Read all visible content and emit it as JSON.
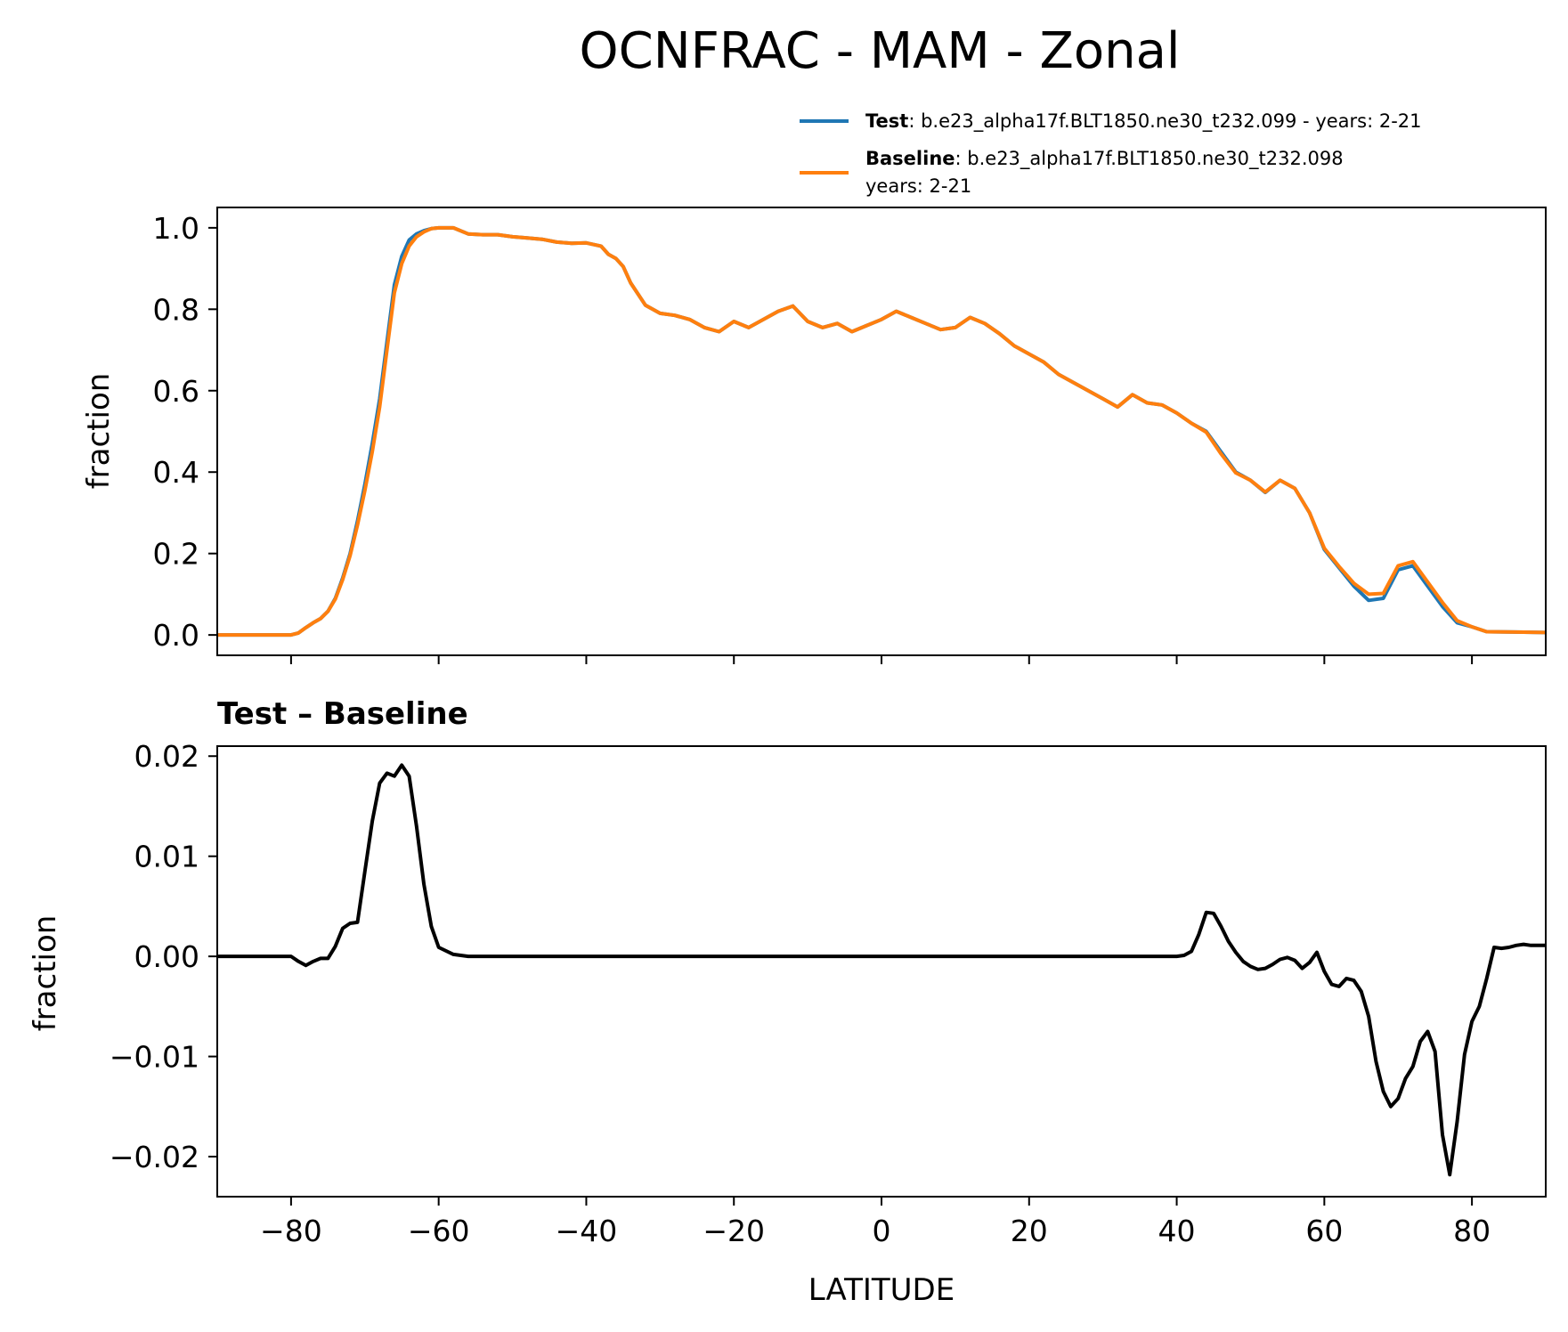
{
  "chart_data": [
    {
      "type": "line",
      "title": "OCNFRAC - MAM - Zonal",
      "xlabel": "",
      "ylabel": "fraction",
      "xlim": [
        -90,
        90
      ],
      "ylim": [
        -0.05,
        1.05
      ],
      "yticks": [
        0.0,
        0.2,
        0.4,
        0.6,
        0.8,
        1.0
      ],
      "ytick_labels": [
        "0.0",
        "0.2",
        "0.4",
        "0.6",
        "0.8",
        "1.0"
      ],
      "xticks": [
        -80,
        -60,
        -40,
        -20,
        0,
        20,
        40,
        60,
        80
      ],
      "grid": false,
      "legend_placement": "above-top-right",
      "legend": [
        {
          "name": "Test",
          "desc": ": b.e23_alpha17f.BLT1850.ne30_t232.099 - years: 2-21",
          "desc2": "",
          "color": "#1f77b4"
        },
        {
          "name": "Baseline",
          "desc": ": b.e23_alpha17f.BLT1850.ne30_t232.098",
          "desc2": "years: 2-21",
          "color": "#ff7f0e"
        }
      ],
      "series": [
        {
          "name": "Test",
          "color": "#1f77b4",
          "x": [
            -90,
            -85,
            -80,
            -79,
            -78,
            -77,
            -76,
            -75,
            -74,
            -73,
            -72,
            -71,
            -70,
            -69,
            -68,
            -67,
            -66,
            -65,
            -64,
            -63,
            -62,
            -61,
            -60,
            -59,
            -58,
            -56,
            -54,
            -52,
            -50,
            -48,
            -46,
            -44,
            -42,
            -40,
            -38,
            -37,
            -36,
            -35,
            -34,
            -32,
            -30,
            -28,
            -26,
            -24,
            -22,
            -20,
            -18,
            -16,
            -14,
            -12,
            -10,
            -8,
            -6,
            -4,
            -2,
            0,
            2,
            4,
            6,
            8,
            10,
            12,
            14,
            16,
            18,
            20,
            22,
            24,
            26,
            28,
            30,
            32,
            34,
            36,
            38,
            40,
            42,
            44,
            46,
            48,
            50,
            52,
            54,
            56,
            58,
            60,
            62,
            64,
            66,
            68,
            70,
            72,
            74,
            76,
            78,
            80,
            82,
            86,
            90
          ],
          "y": [
            0.0,
            0.0,
            0.0,
            0.005,
            0.018,
            0.03,
            0.04,
            0.058,
            0.09,
            0.14,
            0.2,
            0.28,
            0.37,
            0.47,
            0.58,
            0.72,
            0.86,
            0.93,
            0.97,
            0.985,
            0.993,
            0.998,
            1.0,
            1.0,
            1.0,
            0.985,
            0.983,
            0.983,
            0.978,
            0.975,
            0.972,
            0.965,
            0.962,
            0.963,
            0.955,
            0.935,
            0.925,
            0.905,
            0.865,
            0.81,
            0.79,
            0.785,
            0.775,
            0.755,
            0.745,
            0.77,
            0.755,
            0.775,
            0.795,
            0.808,
            0.77,
            0.755,
            0.765,
            0.745,
            0.76,
            0.775,
            0.795,
            0.78,
            0.765,
            0.75,
            0.755,
            0.78,
            0.765,
            0.74,
            0.71,
            0.69,
            0.67,
            0.64,
            0.62,
            0.6,
            0.58,
            0.56,
            0.59,
            0.57,
            0.565,
            0.545,
            0.52,
            0.5,
            0.45,
            0.4,
            0.38,
            0.35,
            0.38,
            0.36,
            0.3,
            0.21,
            0.165,
            0.12,
            0.085,
            0.09,
            0.16,
            0.17,
            0.12,
            0.07,
            0.03,
            0.02,
            0.008,
            0.007,
            0.006
          ]
        },
        {
          "name": "Baseline",
          "color": "#ff7f0e",
          "x": [
            -90,
            -85,
            -80,
            -79,
            -78,
            -77,
            -76,
            -75,
            -74,
            -73,
            -72,
            -71,
            -70,
            -69,
            -68,
            -67,
            -66,
            -65,
            -64,
            -63,
            -62,
            -61,
            -60,
            -59,
            -58,
            -56,
            -54,
            -52,
            -50,
            -48,
            -46,
            -44,
            -42,
            -40,
            -38,
            -37,
            -36,
            -35,
            -34,
            -32,
            -30,
            -28,
            -26,
            -24,
            -22,
            -20,
            -18,
            -16,
            -14,
            -12,
            -10,
            -8,
            -6,
            -4,
            -2,
            0,
            2,
            4,
            6,
            8,
            10,
            12,
            14,
            16,
            18,
            20,
            22,
            24,
            26,
            28,
            30,
            32,
            34,
            36,
            38,
            40,
            42,
            44,
            46,
            48,
            50,
            52,
            54,
            56,
            58,
            60,
            62,
            64,
            66,
            68,
            70,
            72,
            74,
            76,
            78,
            80,
            82,
            86,
            90
          ],
          "y": [
            0.0,
            0.0,
            0.0,
            0.005,
            0.018,
            0.03,
            0.04,
            0.058,
            0.088,
            0.136,
            0.195,
            0.27,
            0.355,
            0.45,
            0.56,
            0.7,
            0.84,
            0.912,
            0.955,
            0.978,
            0.99,
            0.998,
            1.0,
            1.0,
            1.0,
            0.985,
            0.983,
            0.983,
            0.978,
            0.975,
            0.972,
            0.965,
            0.962,
            0.963,
            0.955,
            0.935,
            0.925,
            0.905,
            0.865,
            0.81,
            0.79,
            0.785,
            0.775,
            0.755,
            0.745,
            0.77,
            0.755,
            0.775,
            0.795,
            0.808,
            0.77,
            0.755,
            0.765,
            0.745,
            0.76,
            0.775,
            0.795,
            0.78,
            0.765,
            0.75,
            0.755,
            0.78,
            0.765,
            0.74,
            0.71,
            0.69,
            0.67,
            0.64,
            0.62,
            0.6,
            0.58,
            0.56,
            0.59,
            0.57,
            0.565,
            0.545,
            0.52,
            0.498,
            0.445,
            0.398,
            0.38,
            0.351,
            0.38,
            0.36,
            0.3,
            0.213,
            0.168,
            0.127,
            0.1,
            0.102,
            0.17,
            0.18,
            0.13,
            0.08,
            0.035,
            0.02,
            0.008,
            0.007,
            0.006
          ]
        }
      ]
    },
    {
      "type": "line",
      "title": "Test – Baseline",
      "xlabel": "LATITUDE",
      "ylabel": "fraction",
      "xlim": [
        -90,
        90
      ],
      "ylim": [
        -0.024,
        0.021
      ],
      "yticks": [
        -0.02,
        -0.01,
        0.0,
        0.01,
        0.02
      ],
      "ytick_labels": [
        "−0.02",
        "−0.01",
        "0.00",
        "0.01",
        "0.02"
      ],
      "xticks": [
        -80,
        -60,
        -40,
        -20,
        0,
        20,
        40,
        60,
        80
      ],
      "xtick_labels": [
        "−80",
        "−60",
        "−40",
        "−20",
        "0",
        "20",
        "40",
        "60",
        "80"
      ],
      "grid": false,
      "series": [
        {
          "name": "",
          "color": "#000000",
          "x": [
            -90,
            -85,
            -80,
            -79,
            -78,
            -77,
            -76,
            -75,
            -74,
            -73,
            -72,
            -71,
            -70,
            -69,
            -68,
            -67,
            -66,
            -65,
            -64,
            -63,
            -62,
            -61,
            -60,
            -58,
            -56,
            -50,
            -40,
            -20,
            0,
            20,
            40,
            41,
            42,
            43,
            44,
            45,
            46,
            47,
            48,
            49,
            50,
            51,
            52,
            53,
            54,
            55,
            56,
            57,
            58,
            59,
            60,
            61,
            62,
            63,
            64,
            65,
            66,
            67,
            68,
            69,
            70,
            71,
            72,
            73,
            74,
            75,
            76,
            77,
            78,
            79,
            80,
            81,
            82,
            83,
            84,
            85,
            86,
            87,
            88,
            89,
            90
          ],
          "y": [
            0.0,
            0.0,
            0.0,
            -0.0005,
            -0.0009,
            -0.0005,
            -0.0002,
            -0.0002,
            0.001,
            0.0028,
            0.0033,
            0.0034,
            0.0085,
            0.0135,
            0.0173,
            0.0183,
            0.018,
            0.0191,
            0.018,
            0.013,
            0.0072,
            0.003,
            0.0009,
            0.0002,
            0.0,
            0.0,
            0.0,
            0.0,
            0.0,
            0.0,
            0.0,
            0.0001,
            0.0005,
            0.0022,
            0.0044,
            0.0043,
            0.003,
            0.0015,
            0.0004,
            -0.0005,
            -0.001,
            -0.0013,
            -0.0012,
            -0.0008,
            -0.0003,
            -0.0001,
            -0.0004,
            -0.0012,
            -0.0006,
            0.0004,
            -0.0015,
            -0.0028,
            -0.003,
            -0.0022,
            -0.0024,
            -0.0035,
            -0.006,
            -0.0105,
            -0.0135,
            -0.015,
            -0.0142,
            -0.0122,
            -0.011,
            -0.0085,
            -0.0075,
            -0.0095,
            -0.0178,
            -0.0218,
            -0.0165,
            -0.0098,
            -0.0065,
            -0.005,
            -0.0022,
            0.0009,
            0.0008,
            0.0009,
            0.0011,
            0.0012,
            0.0011,
            0.0011,
            0.0011
          ]
        }
      ]
    }
  ]
}
